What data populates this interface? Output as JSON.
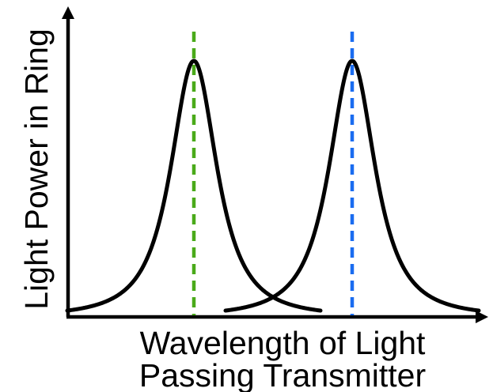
{
  "y_axis_label": "Light Power in Ring",
  "x_axis_label_lines": [
    "Wavelength of Light",
    "Passing Transmitter"
  ],
  "colors": {
    "curve": "#000000",
    "axes": "#000000",
    "left_marker": "#4aaa1a",
    "right_marker": "#1a6cf0"
  },
  "peaks": [
    {
      "name": "left",
      "marker_color_key": "left_marker"
    },
    {
      "name": "right",
      "marker_color_key": "right_marker"
    }
  ]
}
